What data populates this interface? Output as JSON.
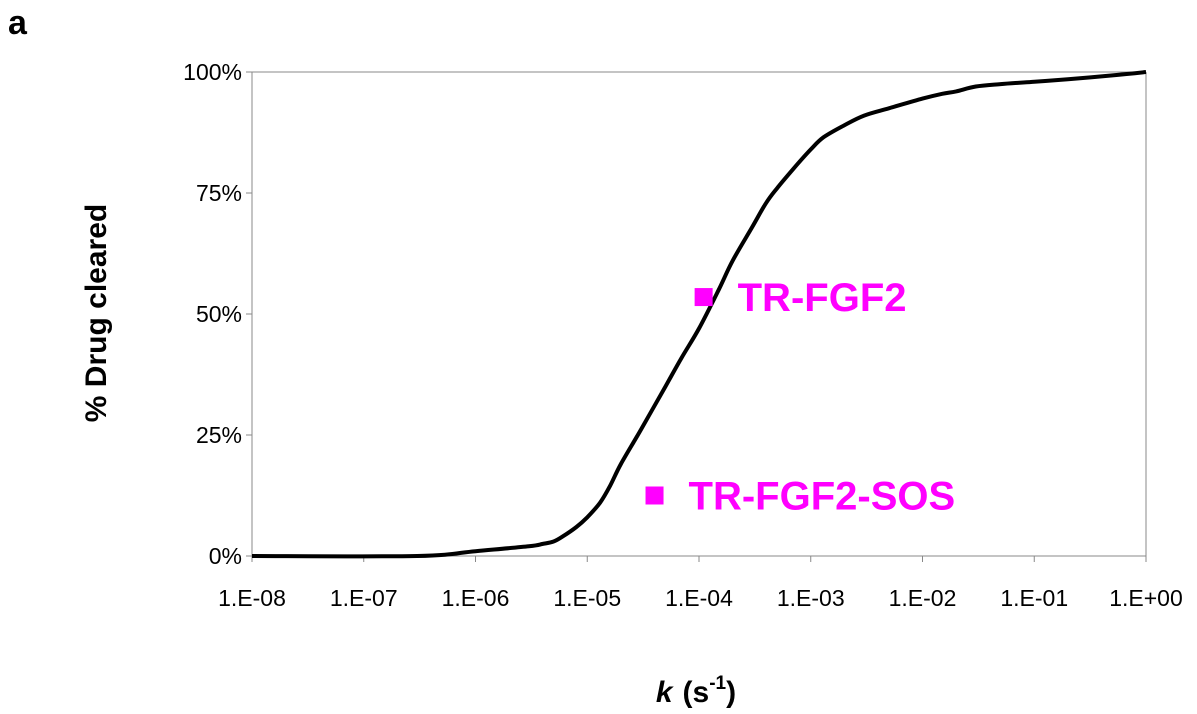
{
  "panel_label": "a",
  "colors": {
    "curve": "#000000",
    "points": "#ff00ff",
    "axis": "#888888"
  },
  "chart_data": {
    "type": "line",
    "title": "",
    "ylabel": "% Drug cleared",
    "xlabel_parts": {
      "symbol": "k",
      "open": "(s",
      "exponent": "-1",
      "close": ")"
    },
    "x_scale": "log",
    "xlim": [
      1e-08,
      1
    ],
    "ylim": [
      0,
      100
    ],
    "x_ticks": [
      {
        "value": 1e-08,
        "label": "1.E-08"
      },
      {
        "value": 1e-07,
        "label": "1.E-07"
      },
      {
        "value": 1e-06,
        "label": "1.E-06"
      },
      {
        "value": 1e-05,
        "label": "1.E-05"
      },
      {
        "value": 0.0001,
        "label": "1.E-04"
      },
      {
        "value": 0.001,
        "label": "1.E-03"
      },
      {
        "value": 0.01,
        "label": "1.E-02"
      },
      {
        "value": 0.1,
        "label": "1.E-01"
      },
      {
        "value": 1,
        "label": "1.E+00"
      }
    ],
    "y_ticks": [
      {
        "value": 0,
        "label": "0%"
      },
      {
        "value": 25,
        "label": "25%"
      },
      {
        "value": 50,
        "label": "50%"
      },
      {
        "value": 75,
        "label": "75%"
      },
      {
        "value": 100,
        "label": "100%"
      }
    ],
    "grid": "y-major-top-only",
    "curve": {
      "x": [
        1e-08,
        3e-07,
        1e-06,
        3e-06,
        4e-06,
        5e-06,
        6e-06,
        8e-06,
        1e-05,
        1.3e-05,
        1.6e-05,
        2e-05,
        3e-05,
        5e-05,
        7e-05,
        0.0001,
        0.00015,
        0.0002,
        0.0003,
        0.0004,
        0.0005,
        0.0007,
        0.001,
        0.0013,
        0.002,
        0.003,
        0.005,
        0.01,
        0.015,
        0.02,
        0.03,
        0.05,
        0.1,
        0.2,
        0.5,
        1
      ],
      "y": [
        0,
        0,
        1,
        2,
        2.5,
        3,
        4,
        6,
        8,
        11,
        14.5,
        19,
        26,
        35,
        41,
        47,
        55,
        61,
        68,
        73,
        76,
        80,
        84,
        86.5,
        89,
        91,
        92.5,
        94.5,
        95.5,
        96,
        97,
        97.5,
        98,
        98.5,
        99.3,
        100
      ]
    },
    "points": [
      {
        "label": "TR-FGF2",
        "x": 0.00011,
        "y": 53.5
      },
      {
        "label": "TR-FGF2-SOS",
        "x": 4e-05,
        "y": 12.5
      }
    ]
  }
}
